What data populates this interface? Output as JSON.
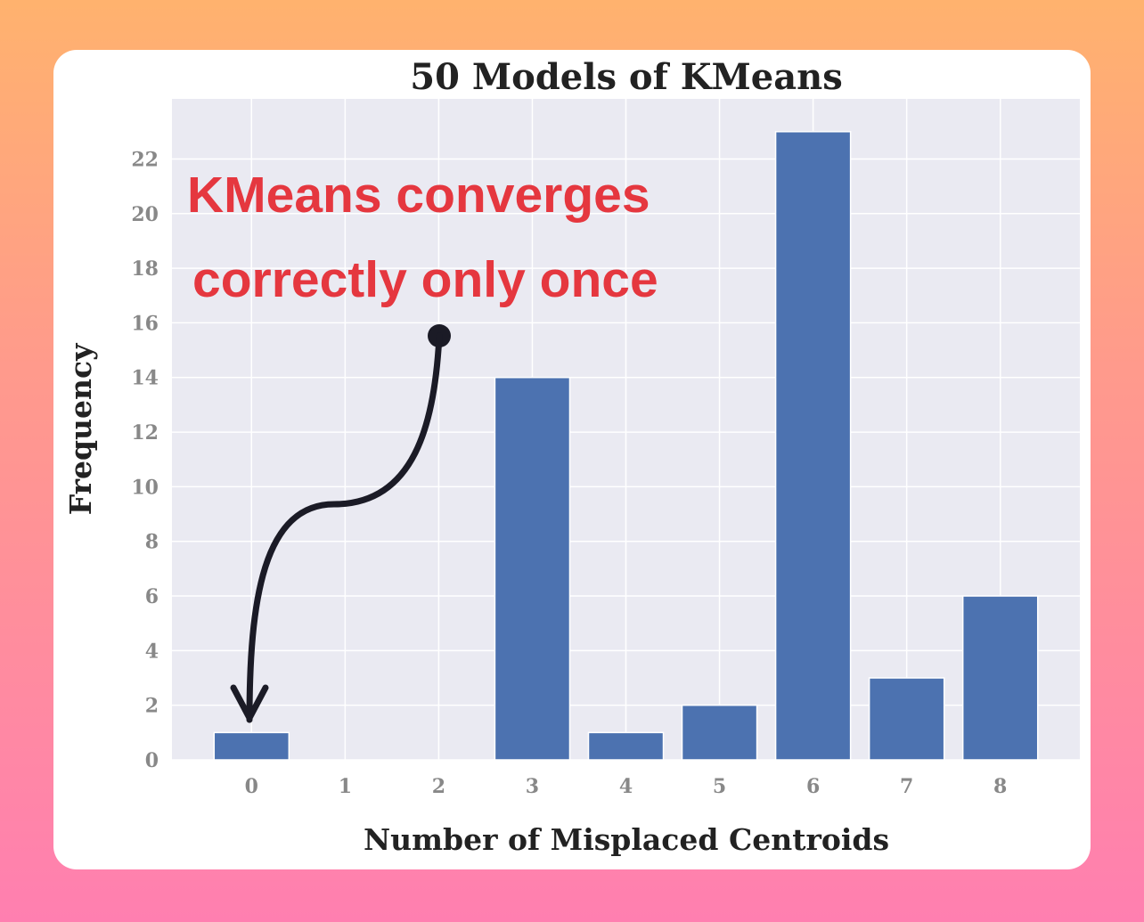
{
  "chart_data": {
    "type": "bar",
    "title": "50 Models of KMeans",
    "xlabel": "Number of Misplaced Centroids",
    "ylabel": "Frequency",
    "categories": [
      "0",
      "1",
      "2",
      "3",
      "4",
      "5",
      "6",
      "7",
      "8"
    ],
    "values": [
      1,
      0,
      0,
      14,
      1,
      2,
      23,
      3,
      6
    ],
    "yticks": [
      "0",
      "2",
      "4",
      "6",
      "8",
      "10",
      "12",
      "14",
      "16",
      "18",
      "20",
      "22"
    ],
    "ylim": [
      0,
      24.2
    ],
    "grid": true,
    "bar_color": "#4c72b0",
    "plot_background": "#eaeaf2",
    "annotation": {
      "lines": [
        "KMeans converges",
        "correctly only once"
      ],
      "color": "#e5373f",
      "points_to": "0"
    }
  }
}
